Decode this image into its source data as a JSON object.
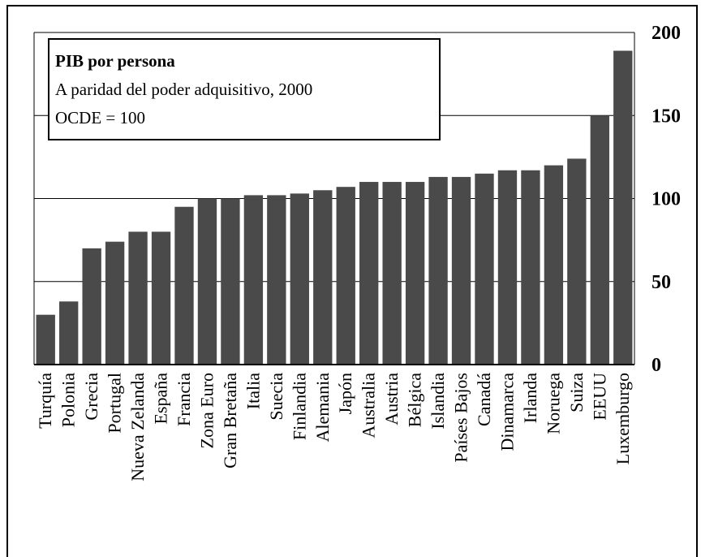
{
  "chart_data": {
    "type": "bar",
    "title": "PIB por persona",
    "subtitle": "A paridad del poder adquisitivo, 2000",
    "note": "OCDE = 100",
    "xlabel": "",
    "ylabel": "",
    "ylim": [
      0,
      200
    ],
    "yticks": [
      "0",
      "50",
      "100",
      "150",
      "200"
    ],
    "grid": true,
    "bar_color": "#4a4a4a",
    "categories": [
      "Turquía",
      "Polonia",
      "Grecia",
      "Portugal",
      "Nueva Zelanda",
      "España",
      "Francia",
      "Zona Euro",
      "Gran Bretaña",
      "Italia",
      "Suecia",
      "Finlandia",
      "Alemania",
      "Japón",
      "Australia",
      "Austria",
      "Bélgica",
      "Islandia",
      "Países Bajos",
      "Canadá",
      "Dinamarca",
      "Irlanda",
      "Noruega",
      "Suiza",
      "EEUU",
      "Luxemburgo"
    ],
    "values": [
      30,
      38,
      70,
      74,
      80,
      80,
      95,
      100,
      100,
      102,
      102,
      103,
      105,
      107,
      110,
      110,
      110,
      113,
      113,
      115,
      117,
      117,
      120,
      124,
      150,
      189
    ]
  }
}
